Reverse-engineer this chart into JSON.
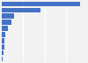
{
  "values": [
    44000,
    22000,
    6900,
    5500,
    3300,
    2200,
    1700,
    1300,
    900,
    690
  ],
  "bar_color": "#4472c4",
  "background_color": "#f2f2f2",
  "grid_color": "#ffffff",
  "figsize": [
    1.0,
    0.71
  ],
  "dpi": 100,
  "xlim": [
    0,
    48000
  ]
}
